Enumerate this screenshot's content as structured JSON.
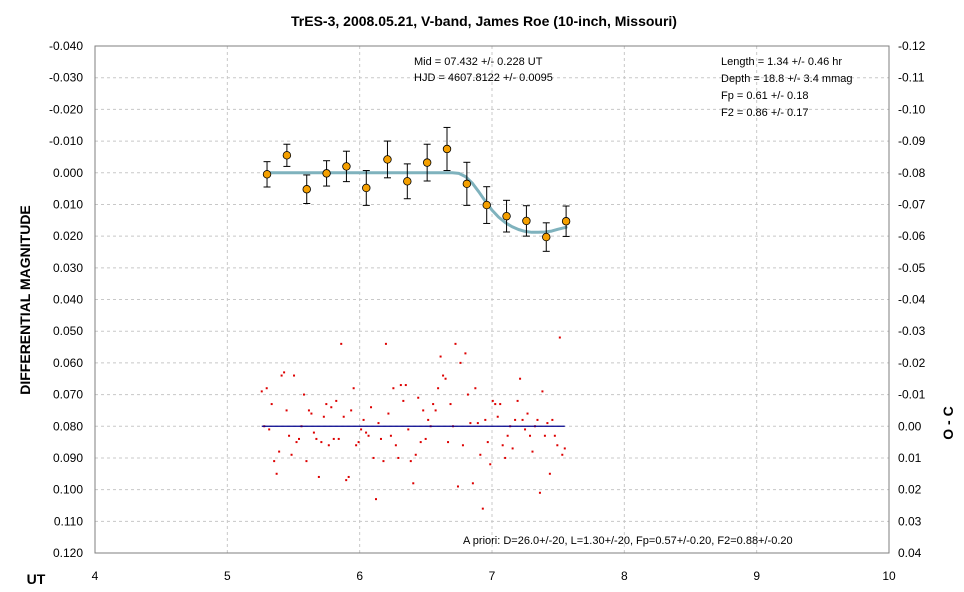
{
  "chart_data": {
    "type": "scatter",
    "title": "TrES-3, 2008.05.21, V-band, James Roe (10-inch, Missouri)",
    "xlabel": "UT",
    "ylabel": "DIFFERENTIAL MAGNITUDE",
    "y2label": "O - C",
    "xlim": [
      4,
      10
    ],
    "ylim": [
      -0.04,
      0.12
    ],
    "y2lim": [
      -0.12,
      0.04
    ],
    "y_reversed": true,
    "grid": true,
    "x_ticks": [
      "4",
      "5",
      "6",
      "7",
      "8",
      "9",
      "10"
    ],
    "y_ticks": [
      "-0.040",
      "-0.030",
      "-0.020",
      "-0.010",
      "0.000",
      "0.010",
      "0.020",
      "0.030",
      "0.040",
      "0.050",
      "0.060",
      "0.070",
      "0.080",
      "0.090",
      "0.100",
      "0.110",
      "0.120"
    ],
    "y2_ticks": [
      "-0.12",
      "-0.11",
      "-0.10",
      "-0.09",
      "-0.08",
      "-0.07",
      "-0.06",
      "-0.05",
      "-0.04",
      "-0.03",
      "-0.02",
      "-0.01",
      "0.00",
      "0.01",
      "0.02",
      "0.03",
      "0.04"
    ],
    "annotations": {
      "mid": "Mid  = 07.432 +/- 0.228 UT",
      "hjd": "HJD = 4607.8122 +/- 0.0095",
      "length": "Length = 1.34 +/- 0.46 hr",
      "depth": "Depth = 18.8 +/- 3.4 mmag",
      "fp": "Fp = 0.61 +/- 0.18",
      "f2": "F2 = 0.86 +/- 0.17",
      "apriori": "A priori: D=26.0+/-20, L=1.30+/-20, Fp=0.57+/-0.20, F2=0.88+/-0.20"
    },
    "binned_points": {
      "x": [
        5.3,
        5.45,
        5.6,
        5.75,
        5.9,
        6.05,
        6.21,
        6.36,
        6.51,
        6.66,
        6.81,
        6.96,
        7.11,
        7.26,
        7.41,
        7.56
      ],
      "y": [
        0.0005,
        -0.0055,
        0.0052,
        0.0002,
        -0.002,
        0.0048,
        -0.0042,
        0.0027,
        -0.0032,
        -0.0075,
        0.0035,
        0.0102,
        0.0137,
        0.0152,
        0.0203,
        0.0153
      ],
      "err": [
        0.004,
        0.0035,
        0.0045,
        0.004,
        0.0048,
        0.0055,
        0.0058,
        0.0055,
        0.0058,
        0.0068,
        0.0068,
        0.0058,
        0.005,
        0.0048,
        0.0045,
        0.0048
      ],
      "color": "#f5a000"
    },
    "model_curve": {
      "x": [
        5.3,
        6.7,
        6.75,
        6.8,
        6.85,
        6.9,
        6.95,
        7.0,
        7.05,
        7.1,
        7.15,
        7.2,
        7.25,
        7.3,
        7.35,
        7.4,
        7.45,
        7.5,
        7.56
      ],
      "y": [
        0.0,
        0.0,
        0.0002,
        0.0012,
        0.0032,
        0.006,
        0.009,
        0.0118,
        0.014,
        0.0157,
        0.017,
        0.0179,
        0.0185,
        0.0188,
        0.0188,
        0.0187,
        0.0184,
        0.0178,
        0.0172
      ],
      "color": "#7fb2bd"
    },
    "residuals": {
      "baseline": 0.08,
      "x_range": [
        5.26,
        7.55
      ],
      "y": [
        0.069,
        0.08,
        0.068,
        0.081,
        0.073,
        0.091,
        0.095,
        0.088,
        0.064,
        0.063,
        0.075,
        0.083,
        0.089,
        0.064,
        0.085,
        0.084,
        0.08,
        0.07,
        0.091,
        0.075,
        0.076,
        0.082,
        0.084,
        0.096,
        0.085,
        0.077,
        0.073,
        0.086,
        0.074,
        0.084,
        0.072,
        0.084,
        0.054,
        0.077,
        0.097,
        0.096,
        0.075,
        0.068,
        0.086,
        0.085,
        0.081,
        0.078,
        0.082,
        0.083,
        0.074,
        0.09,
        0.103,
        0.079,
        0.084,
        0.091,
        0.054,
        0.076,
        0.083,
        0.068,
        0.086,
        0.09,
        0.067,
        0.072,
        0.067,
        0.081,
        0.091,
        0.098,
        0.089,
        0.071,
        0.085,
        0.075,
        0.084,
        0.078,
        0.08,
        0.073,
        0.075,
        0.068,
        0.058,
        0.064,
        0.065,
        0.085,
        0.073,
        0.08,
        0.054,
        0.099,
        0.06,
        0.086,
        0.057,
        0.07,
        0.079,
        0.098,
        0.068,
        0.079,
        0.089,
        0.106,
        0.078,
        0.085,
        0.092,
        0.072,
        0.073,
        0.077,
        0.073,
        0.086,
        0.09,
        0.083,
        0.08,
        0.087,
        0.078,
        0.072,
        0.065,
        0.078,
        0.081,
        0.076,
        0.083,
        0.088,
        0.08,
        0.078,
        0.101,
        0.069,
        0.083,
        0.079,
        0.095,
        0.078,
        0.083,
        0.086,
        0.052,
        0.089,
        0.087
      ],
      "color": "#dd0000",
      "line_color": "#00008b"
    }
  }
}
